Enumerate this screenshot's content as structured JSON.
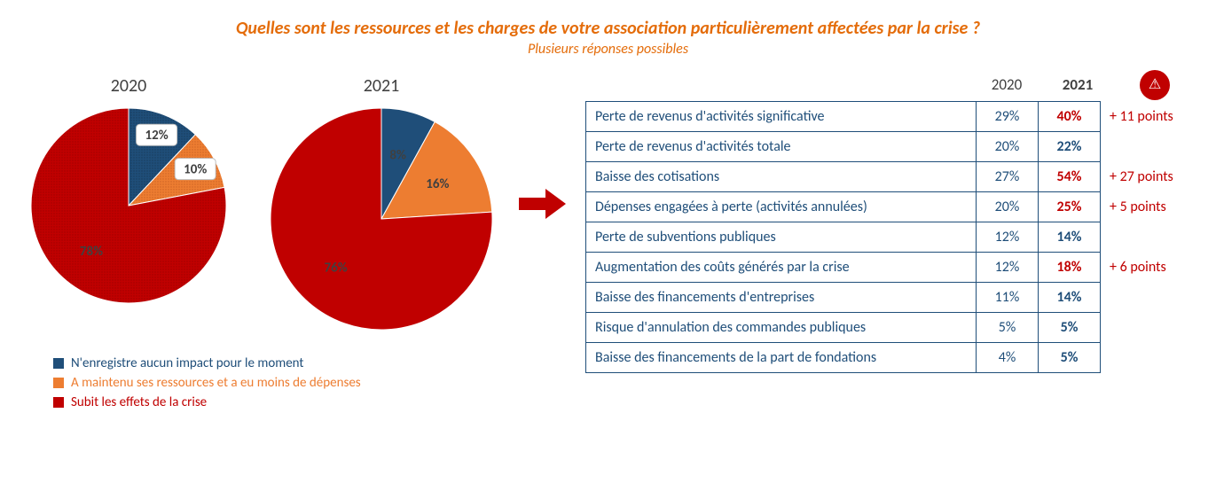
{
  "title": {
    "main": "Quelles sont les ressources et les charges de votre association particulièrement affectées par la crise ?",
    "sub": "Plusieurs réponses possibles"
  },
  "colors": {
    "accent_orange": "#e46c0a",
    "blue": "#1f4e79",
    "pie_blue": "#1f4e79",
    "pie_orange": "#ed7d31",
    "pie_red": "#c00000",
    "text_dark": "#404040",
    "white": "#ffffff",
    "border": "#1f4e79"
  },
  "pie2020": {
    "year": "2020",
    "radius": 110,
    "textured": true,
    "slices": [
      {
        "label": "12%",
        "value": 12,
        "color": "#1f4e79",
        "labelColor": "#404040",
        "calloutBox": true
      },
      {
        "label": "10%",
        "value": 10,
        "color": "#ed7d31",
        "labelColor": "#404040",
        "calloutBox": true
      },
      {
        "label": "78%",
        "value": 78,
        "color": "#c00000",
        "labelColor": "#404040"
      }
    ]
  },
  "pie2021": {
    "year": "2021",
    "radius": 125,
    "textured": false,
    "slices": [
      {
        "label": "8%",
        "value": 8,
        "color": "#1f4e79",
        "labelColor": "#ffffff"
      },
      {
        "label": "16%",
        "value": 16,
        "color": "#ed7d31",
        "labelColor": "#ffffff"
      },
      {
        "label": "76%",
        "value": 76,
        "color": "#c00000",
        "labelColor": "#ffffff"
      }
    ]
  },
  "legend": [
    {
      "color": "#1f4e79",
      "text": "N'enregistre aucun impact pour le moment",
      "textColor": "#1f4e79"
    },
    {
      "color": "#ed7d31",
      "text": "A maintenu ses ressources et a eu moins de dépenses",
      "textColor": "#ed7d31"
    },
    {
      "color": "#c00000",
      "text": "Subit les effets de la crise",
      "textColor": "#c00000"
    }
  ],
  "tableHead": {
    "c2020": "2020",
    "c2021": "2021"
  },
  "rows": [
    {
      "label": "Perte de revenus d'activités significative",
      "v2020": "29%",
      "v2021": "40%",
      "v2021Color": "#c00000",
      "delta": "+ 11 points"
    },
    {
      "label": "Perte de revenus d'activités totale",
      "v2020": "20%",
      "v2021": "22%",
      "v2021Color": "#1f4e79",
      "delta": ""
    },
    {
      "label": "Baisse des cotisations",
      "v2020": "27%",
      "v2021": "54%",
      "v2021Color": "#c00000",
      "delta": "+ 27 points"
    },
    {
      "label": "Dépenses engagées à perte (activités annulées)",
      "v2020": "20%",
      "v2021": "25%",
      "v2021Color": "#c00000",
      "delta": "+ 5 points"
    },
    {
      "label": "Perte de subventions publiques",
      "v2020": "12%",
      "v2021": "14%",
      "v2021Color": "#1f4e79",
      "delta": ""
    },
    {
      "label": "Augmentation des coûts générés par la crise",
      "v2020": "12%",
      "v2021": "18%",
      "v2021Color": "#c00000",
      "delta": "+ 6 points"
    },
    {
      "label": "Baisse des financements d'entreprises",
      "v2020": "11%",
      "v2021": "14%",
      "v2021Color": "#1f4e79",
      "delta": ""
    },
    {
      "label": "Risque d'annulation des commandes publiques",
      "v2020": "5%",
      "v2021": "5%",
      "v2021Color": "#1f4e79",
      "delta": ""
    },
    {
      "label": "Baisse des financements de la part de fondations",
      "v2020": "4%",
      "v2021": "5%",
      "v2021Color": "#1f4e79",
      "delta": ""
    }
  ],
  "arrow": {
    "color": "#c00000"
  }
}
